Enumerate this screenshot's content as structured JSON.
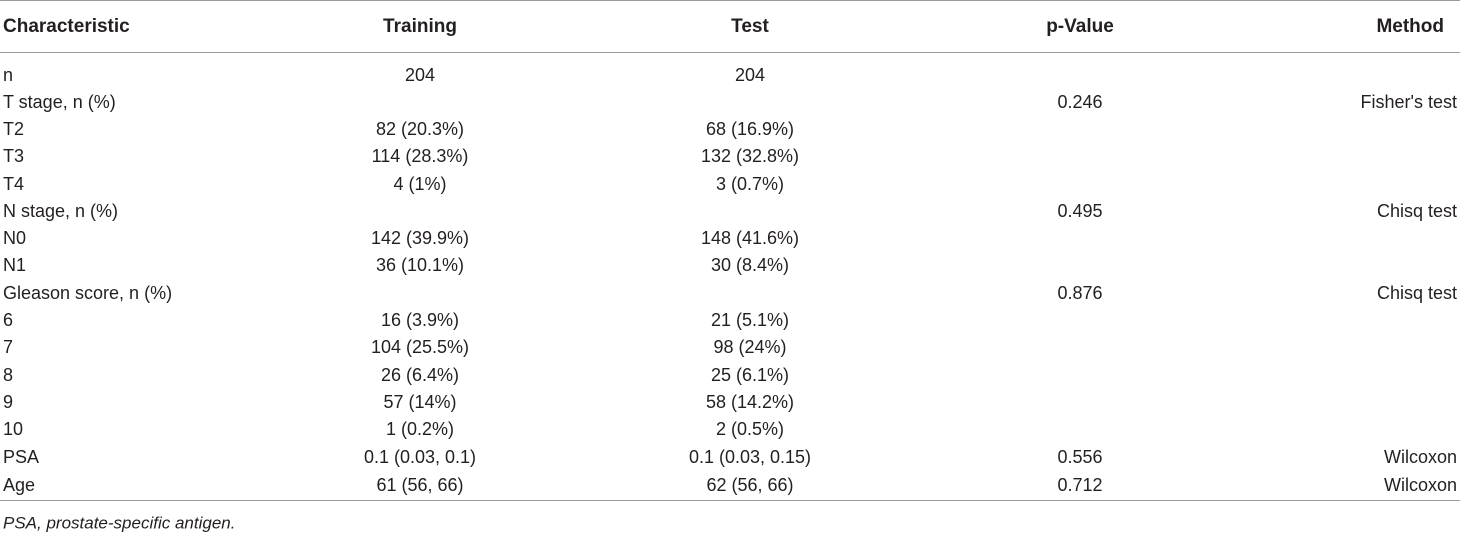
{
  "table": {
    "headers": [
      "Characteristic",
      "Training",
      "Test",
      "p-Value",
      "Method"
    ],
    "rows": [
      [
        "n",
        "204",
        "204",
        "",
        ""
      ],
      [
        "T stage, n (%)",
        "",
        "",
        "0.246",
        "Fisher's test"
      ],
      [
        "T2",
        "82 (20.3%)",
        "68 (16.9%)",
        "",
        ""
      ],
      [
        "T3",
        "114 (28.3%)",
        "132 (32.8%)",
        "",
        ""
      ],
      [
        "T4",
        "4 (1%)",
        "3 (0.7%)",
        "",
        ""
      ],
      [
        "N stage, n (%)",
        "",
        "",
        "0.495",
        "Chisq test"
      ],
      [
        "N0",
        "142 (39.9%)",
        "148 (41.6%)",
        "",
        ""
      ],
      [
        "N1",
        "36 (10.1%)",
        "30 (8.4%)",
        "",
        ""
      ],
      [
        "Gleason score, n (%)",
        "",
        "",
        "0.876",
        "Chisq test"
      ],
      [
        "6",
        "16 (3.9%)",
        "21 (5.1%)",
        "",
        ""
      ],
      [
        "7",
        "104 (25.5%)",
        "98 (24%)",
        "",
        ""
      ],
      [
        "8",
        "26 (6.4%)",
        "25 (6.1%)",
        "",
        ""
      ],
      [
        "9",
        "57 (14%)",
        "58 (14.2%)",
        "",
        ""
      ],
      [
        "10",
        "1 (0.2%)",
        "2 (0.5%)",
        "",
        ""
      ],
      [
        "PSA",
        "0.1 (0.03, 0.1)",
        "0.1 (0.03, 0.15)",
        "0.556",
        "Wilcoxon"
      ],
      [
        "Age",
        "61 (56, 66)",
        "62 (56, 66)",
        "0.712",
        "Wilcoxon"
      ]
    ]
  },
  "footnote": "PSA, prostate-specific antigen."
}
